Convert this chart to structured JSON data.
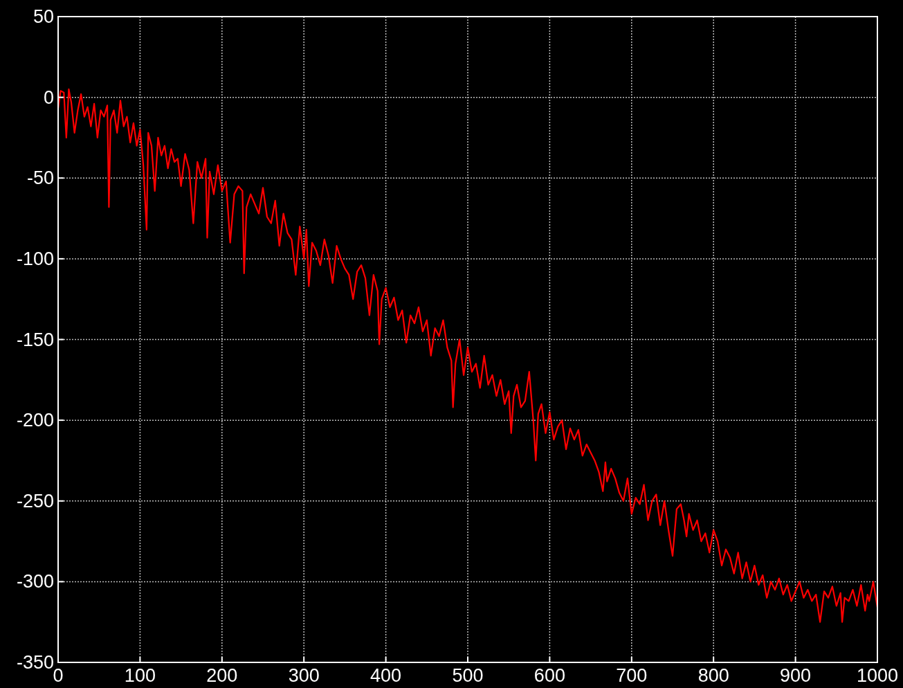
{
  "chart_data": {
    "type": "line",
    "xlim": [
      0,
      1000
    ],
    "ylim": [
      -350,
      50
    ],
    "xticks": [
      0,
      100,
      200,
      300,
      400,
      500,
      600,
      700,
      800,
      900,
      1000
    ],
    "yticks": [
      -350,
      -300,
      -250,
      -200,
      -150,
      -100,
      -50,
      0,
      50
    ],
    "grid": true,
    "line_style": "solid",
    "marker": "none",
    "series": [
      {
        "color": "#ff0000",
        "x": [
          0,
          3,
          7,
          10,
          13,
          16,
          20,
          24,
          28,
          32,
          36,
          40,
          44,
          48,
          52,
          56,
          60,
          62,
          64,
          68,
          72,
          76,
          80,
          84,
          88,
          92,
          96,
          100,
          104,
          108,
          110,
          114,
          118,
          122,
          126,
          130,
          134,
          138,
          142,
          146,
          150,
          155,
          160,
          165,
          170,
          175,
          180,
          182,
          185,
          190,
          195,
          200,
          205,
          210,
          215,
          220,
          225,
          227,
          230,
          235,
          240,
          245,
          250,
          255,
          260,
          265,
          270,
          275,
          280,
          285,
          290,
          295,
          300,
          303,
          306,
          310,
          315,
          320,
          325,
          330,
          335,
          340,
          345,
          350,
          355,
          360,
          365,
          370,
          375,
          380,
          385,
          390,
          392,
          395,
          400,
          405,
          410,
          415,
          420,
          425,
          430,
          435,
          440,
          445,
          450,
          455,
          460,
          465,
          470,
          475,
          480,
          482,
          485,
          490,
          495,
          500,
          505,
          510,
          515,
          520,
          525,
          530,
          535,
          540,
          545,
          550,
          553,
          556,
          560,
          565,
          570,
          575,
          580,
          583,
          586,
          590,
          595,
          600,
          605,
          610,
          615,
          620,
          625,
          630,
          635,
          640,
          645,
          650,
          655,
          660,
          665,
          668,
          670,
          675,
          680,
          685,
          690,
          695,
          700,
          705,
          710,
          715,
          720,
          725,
          730,
          735,
          740,
          745,
          750,
          755,
          760,
          764,
          767,
          770,
          775,
          780,
          785,
          790,
          795,
          800,
          805,
          810,
          815,
          820,
          825,
          830,
          835,
          840,
          845,
          850,
          855,
          860,
          865,
          870,
          875,
          880,
          885,
          890,
          895,
          900,
          905,
          910,
          915,
          920,
          925,
          930,
          935,
          940,
          945,
          950,
          955,
          957,
          960,
          965,
          970,
          975,
          980,
          985,
          988,
          990,
          995,
          1000
        ],
        "values": [
          -7,
          4,
          3,
          -25,
          5,
          -3,
          -22,
          -8,
          2,
          -12,
          -6,
          -18,
          -4,
          -25,
          -8,
          -12,
          -5,
          -68,
          -14,
          -8,
          -22,
          -2,
          -18,
          -12,
          -28,
          -16,
          -30,
          -20,
          -42,
          -82,
          -22,
          -30,
          -58,
          -25,
          -36,
          -30,
          -44,
          -32,
          -40,
          -38,
          -55,
          -35,
          -45,
          -78,
          -40,
          -50,
          -38,
          -87,
          -46,
          -60,
          -42,
          -58,
          -52,
          -90,
          -60,
          -55,
          -58,
          -109,
          -68,
          -60,
          -66,
          -72,
          -56,
          -74,
          -78,
          -64,
          -92,
          -72,
          -84,
          -88,
          -110,
          -80,
          -100,
          -82,
          -117,
          -90,
          -95,
          -104,
          -88,
          -98,
          -115,
          -92,
          -100,
          -106,
          -110,
          -125,
          -108,
          -104,
          -112,
          -135,
          -110,
          -120,
          -153,
          -125,
          -118,
          -130,
          -124,
          -138,
          -132,
          -152,
          -135,
          -140,
          -130,
          -145,
          -138,
          -160,
          -143,
          -148,
          -138,
          -155,
          -163,
          -192,
          -165,
          -150,
          -172,
          -155,
          -170,
          -165,
          -180,
          -160,
          -178,
          -172,
          -185,
          -175,
          -190,
          -182,
          -208,
          -185,
          -178,
          -192,
          -188,
          -170,
          -200,
          -225,
          -196,
          -190,
          -208,
          -195,
          -212,
          -204,
          -200,
          -218,
          -205,
          -212,
          -206,
          -222,
          -215,
          -220,
          -225,
          -232,
          -244,
          -226,
          -238,
          -230,
          -236,
          -245,
          -250,
          -236,
          -258,
          -248,
          -252,
          -240,
          -262,
          -250,
          -246,
          -265,
          -250,
          -268,
          -284,
          -255,
          -252,
          -262,
          -272,
          -258,
          -268,
          -262,
          -275,
          -270,
          -282,
          -268,
          -275,
          -290,
          -280,
          -285,
          -295,
          -282,
          -298,
          -288,
          -300,
          -290,
          -302,
          -296,
          -310,
          -300,
          -305,
          -298,
          -308,
          -302,
          -312,
          -306,
          -300,
          -310,
          -305,
          -312,
          -308,
          -325,
          -306,
          -310,
          -303,
          -315,
          -307,
          -325,
          -310,
          -312,
          -305,
          -315,
          -302,
          -318,
          -308,
          -312,
          -300,
          -316
        ]
      }
    ]
  }
}
